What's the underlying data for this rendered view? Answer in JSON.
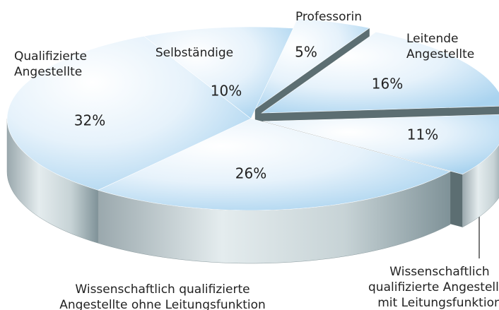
{
  "chart_data": {
    "type": "pie3d",
    "categories": [
      [
        "Professorin"
      ],
      [
        "Leitende",
        "Angestellte"
      ],
      [
        "Wissenschaftlich",
        "qualifizierte Angestellte",
        "mit Leitungsfunktion"
      ],
      [
        "Wissenschaftlich qualifizierte",
        "Angestellte ohne Leitungsfunktion"
      ],
      [
        "Qualifizierte",
        "Angestellte"
      ],
      [
        "Selbständige"
      ]
    ],
    "values": [
      5,
      16,
      11,
      26,
      32,
      10
    ],
    "value_labels": [
      "5%",
      "16%",
      "11%",
      "26%",
      "32%",
      "10%"
    ],
    "explode": [
      true,
      true,
      true,
      false,
      false,
      false
    ]
  }
}
